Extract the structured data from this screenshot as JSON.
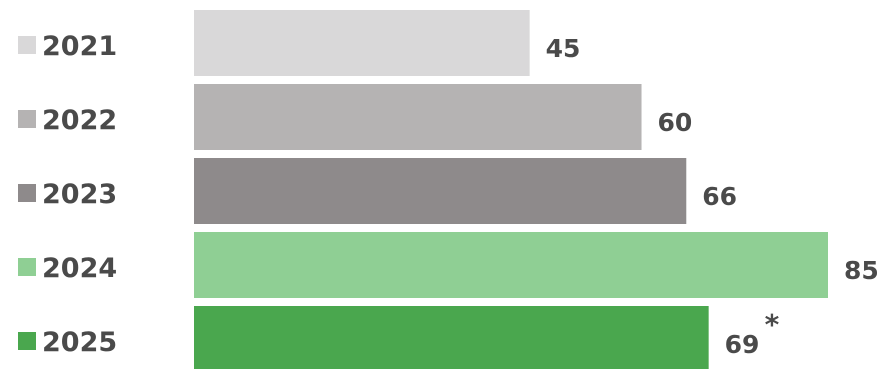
{
  "chart_data": {
    "type": "bar",
    "orientation": "horizontal",
    "categories": [
      "2021",
      "2022",
      "2023",
      "2024",
      "2025"
    ],
    "values": [
      45,
      60,
      66,
      85,
      69
    ],
    "value_labels": [
      "45",
      "60",
      "66",
      "85",
      "69"
    ],
    "annotations": [
      {
        "category": "2025",
        "text": "*"
      }
    ],
    "colors": [
      "#d9d8d9",
      "#b5b3b3",
      "#8e8a8b",
      "#8fcf94",
      "#4aa74e"
    ],
    "title": "",
    "xlabel": "",
    "ylabel": "",
    "xlim": [
      0,
      85
    ],
    "grid": false,
    "legend": "left"
  }
}
